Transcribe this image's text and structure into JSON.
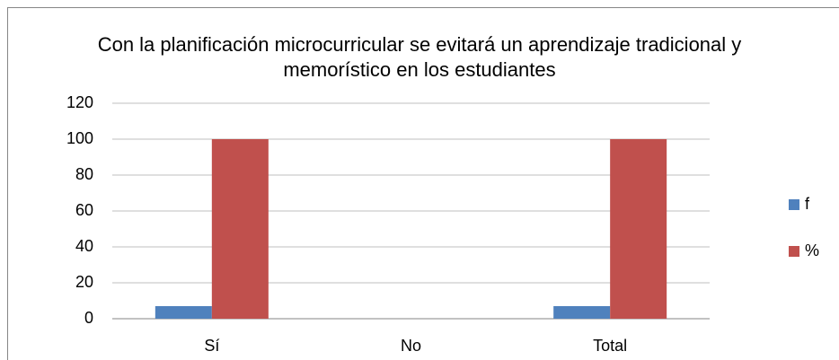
{
  "chart_data": {
    "type": "bar",
    "title": "Con la planificación microcurricular se evitará un aprendizaje tradicional y memorístico en los estudiantes",
    "categories": [
      "Sí",
      "No",
      "Total"
    ],
    "series": [
      {
        "name": "f",
        "color": "#4f81bd",
        "values": [
          7,
          0,
          7
        ]
      },
      {
        "name": "%",
        "color": "#c0504d",
        "values": [
          100,
          0,
          100
        ]
      }
    ],
    "ylim": [
      0,
      120
    ],
    "yticks": [
      0,
      20,
      40,
      60,
      80,
      100,
      120
    ],
    "grid": true,
    "legend": "right"
  }
}
